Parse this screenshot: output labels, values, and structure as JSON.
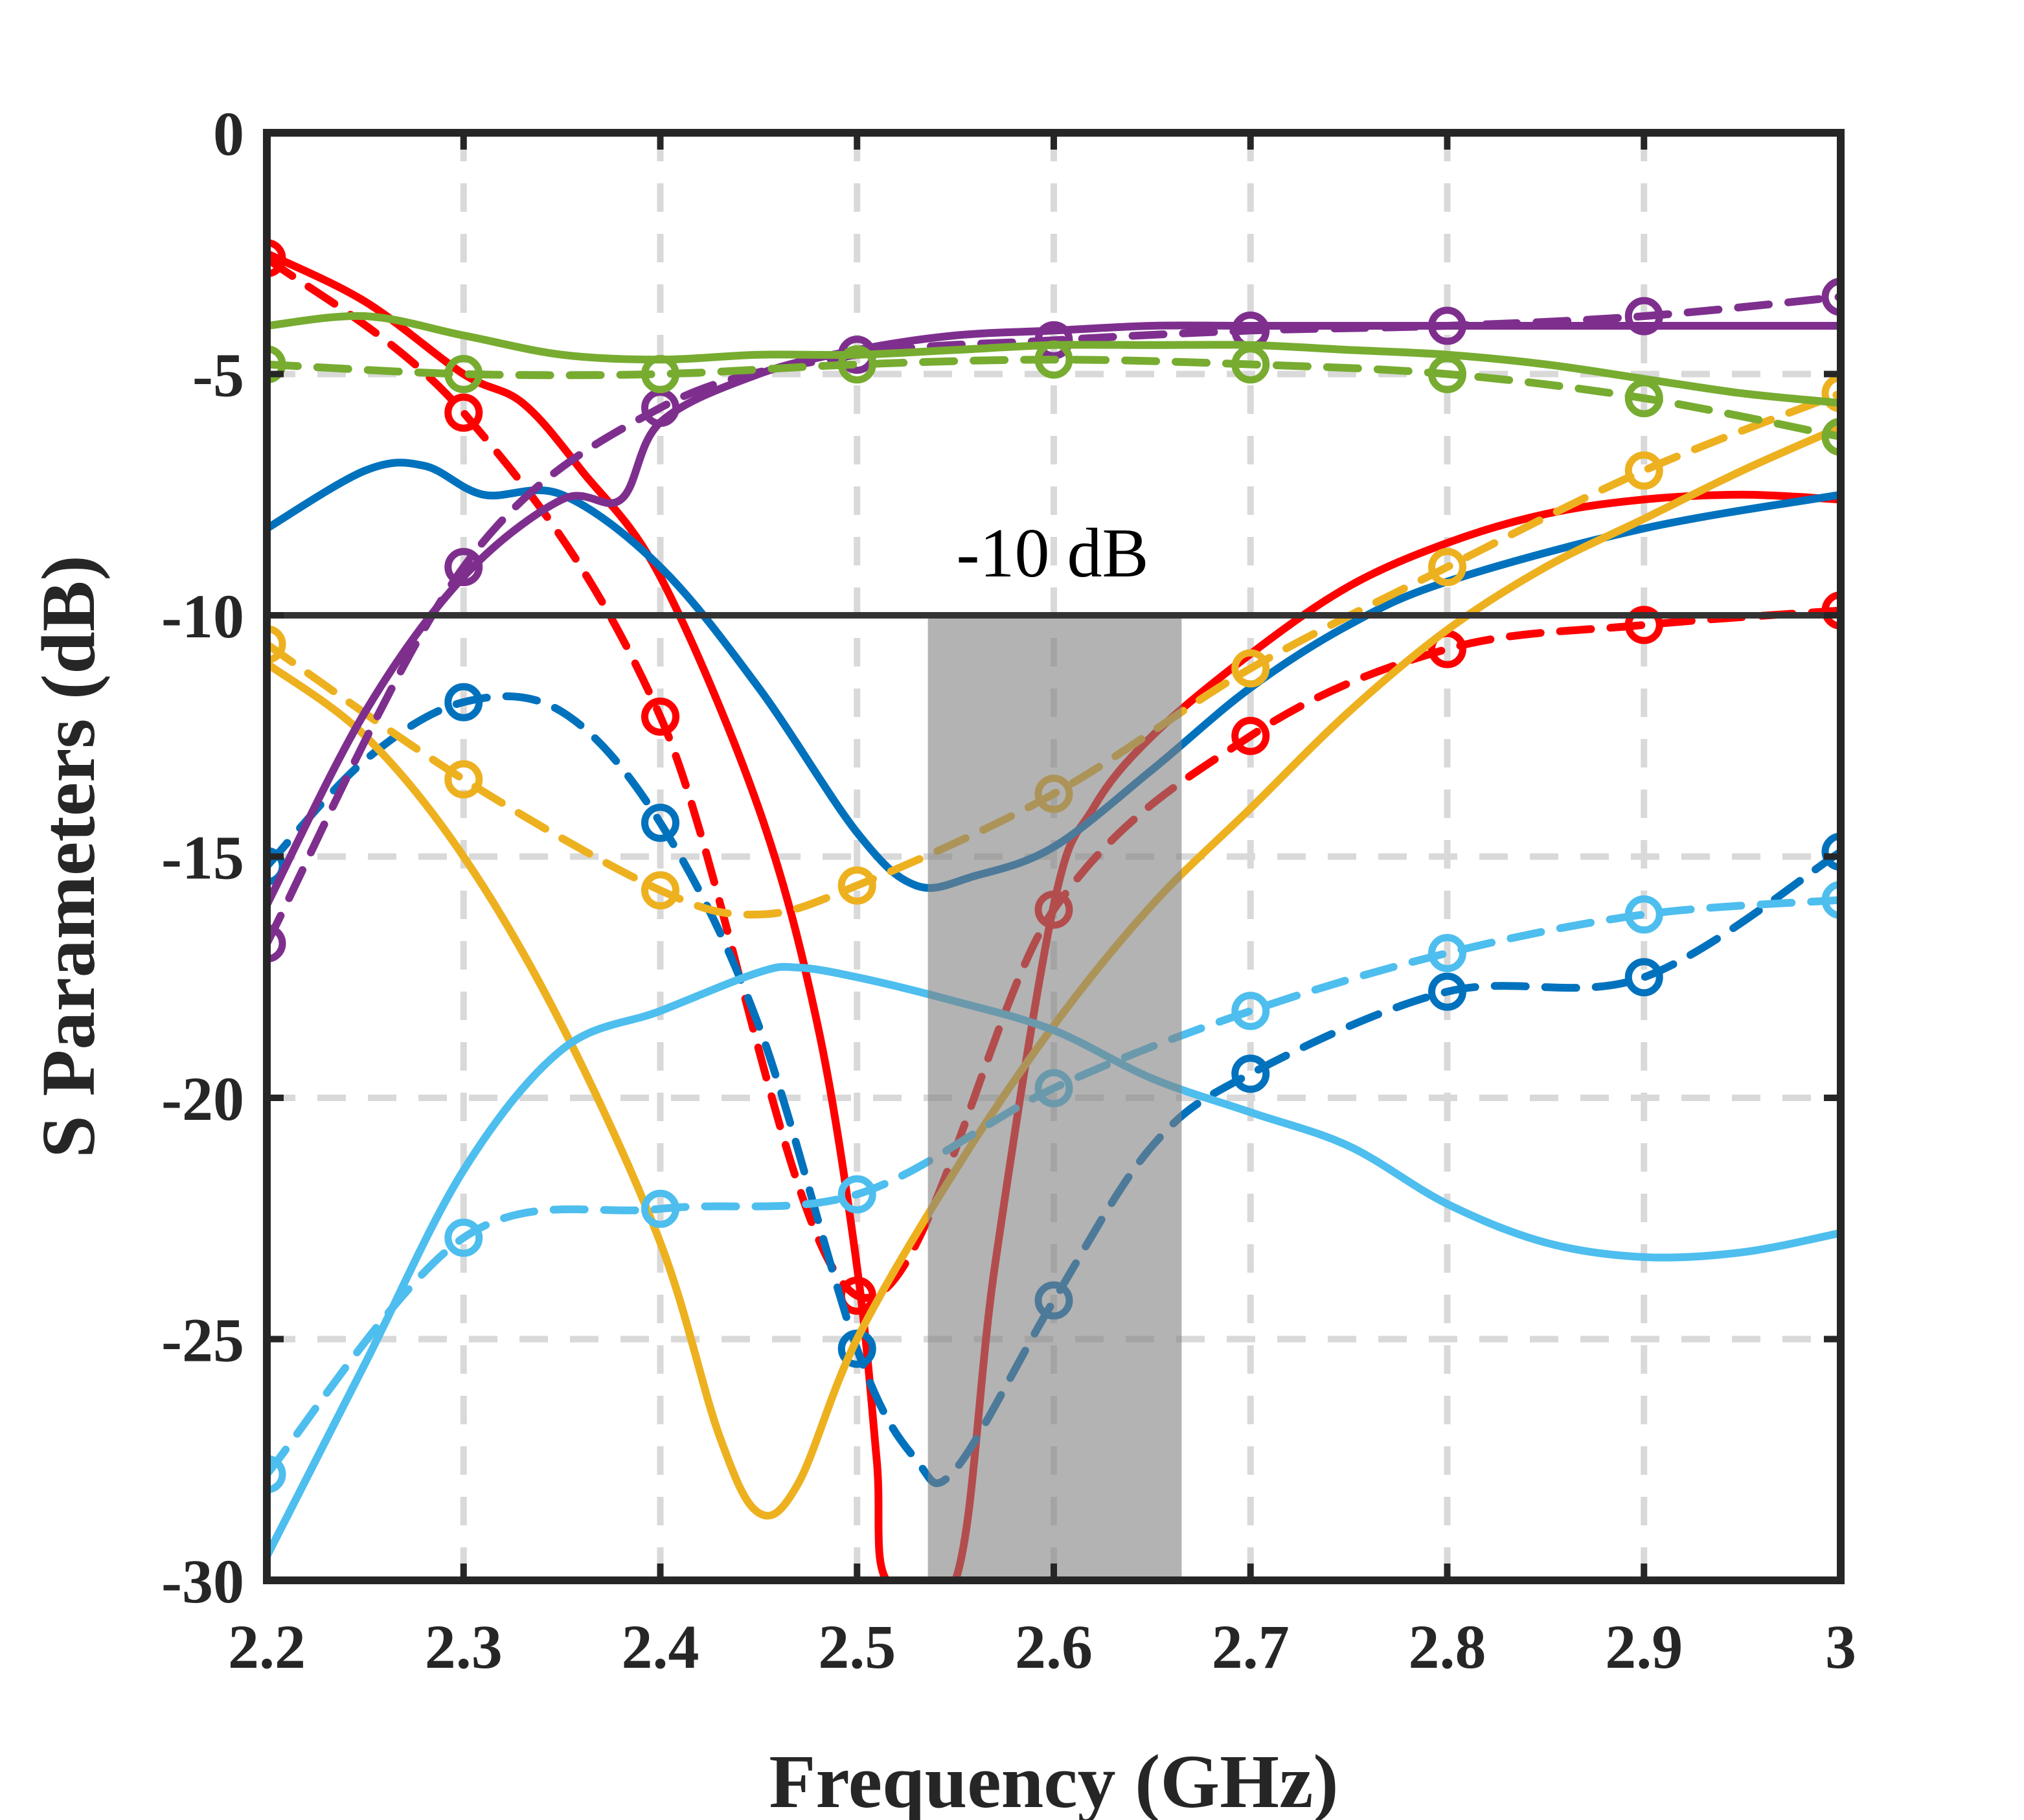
{
  "chart_data": {
    "type": "line",
    "title": "",
    "xlabel": "Frequency (GHz)",
    "ylabel": "S Parameters (dB)",
    "xlim": [
      2.2,
      3.0
    ],
    "ylim": [
      -30,
      0
    ],
    "grid": true,
    "x_ticks": [
      2.2,
      2.3,
      2.4,
      2.5,
      2.6,
      2.7,
      2.8,
      2.9,
      3.0
    ],
    "x_tick_labels": [
      "2.2",
      "2.3",
      "2.4",
      "2.5",
      "2.6",
      "2.7",
      "2.8",
      "2.9",
      "3"
    ],
    "y_ticks": [
      0,
      -5,
      -10,
      -15,
      -20,
      -25,
      -30
    ],
    "y_tick_labels": [
      "0",
      "-5",
      "-10",
      "-15",
      "-20",
      "-25",
      "-30"
    ],
    "reference_line": {
      "y": -10,
      "label": "-10 dB",
      "color": "#333333"
    },
    "shaded_band": {
      "x_start": 2.536,
      "x_end": 2.665,
      "color": "#808080"
    },
    "series": [
      {
        "name": "red-solid",
        "color": "#ff0000",
        "style": "solid",
        "x": [
          2.2,
          2.25,
          2.3,
          2.33,
          2.36,
          2.4,
          2.45,
          2.48,
          2.5,
          2.51,
          2.515,
          2.55,
          2.57,
          2.6,
          2.62,
          2.65,
          2.7,
          2.75,
          2.8,
          2.85,
          2.9,
          2.95,
          3.0
        ],
        "y": [
          -2.5,
          -3.5,
          -5.0,
          -5.6,
          -7.0,
          -9.2,
          -14.0,
          -18.5,
          -23.5,
          -27.5,
          -30.0,
          -30.0,
          -23.5,
          -16.0,
          -14.0,
          -12.5,
          -10.8,
          -9.4,
          -8.5,
          -7.9,
          -7.6,
          -7.5,
          -7.6
        ]
      },
      {
        "name": "red-dashed",
        "color": "#ff0000",
        "style": "dashed",
        "markers_every": 1,
        "x": [
          2.2,
          2.3,
          2.4,
          2.5,
          2.6,
          2.7,
          2.8,
          2.9,
          3.0
        ],
        "y": [
          -2.6,
          -5.8,
          -12.1,
          -24.1,
          -16.1,
          -12.5,
          -10.7,
          -10.2,
          -9.9
        ]
      },
      {
        "name": "blue-solid",
        "color": "#0072bd",
        "style": "solid",
        "x": [
          2.2,
          2.25,
          2.28,
          2.31,
          2.35,
          2.4,
          2.45,
          2.5,
          2.53,
          2.56,
          2.6,
          2.65,
          2.7,
          2.75,
          2.8,
          2.9,
          3.0
        ],
        "y": [
          -8.2,
          -7.0,
          -6.9,
          -7.5,
          -7.5,
          -9.0,
          -11.5,
          -14.5,
          -15.6,
          -15.4,
          -14.8,
          -13.2,
          -11.5,
          -10.2,
          -9.3,
          -8.2,
          -7.5
        ]
      },
      {
        "name": "blue-dashed",
        "color": "#0072bd",
        "style": "dashed",
        "markers_every": 1,
        "x": [
          2.2,
          2.25,
          2.3,
          2.35,
          2.4,
          2.45,
          2.5,
          2.53,
          2.55,
          2.6,
          2.65,
          2.7,
          2.8,
          2.9,
          3.0
        ],
        "y": [
          -15.2,
          -13.0,
          -11.8,
          -12.0,
          -14.3,
          -18.5,
          -25.2,
          -27.5,
          -27.7,
          -24.2,
          -21.0,
          -19.5,
          -17.8,
          -17.5,
          -14.9
        ]
      },
      {
        "name": "yellow-solid",
        "color": "#edb120",
        "style": "solid",
        "x": [
          2.2,
          2.25,
          2.3,
          2.35,
          2.4,
          2.43,
          2.45,
          2.47,
          2.5,
          2.55,
          2.6,
          2.65,
          2.7,
          2.75,
          2.8,
          2.85,
          2.9,
          2.95,
          3.0
        ],
        "y": [
          -11.0,
          -12.5,
          -15.0,
          -18.5,
          -23.0,
          -27.0,
          -28.6,
          -28.0,
          -25.0,
          -21.5,
          -18.5,
          -16.0,
          -14.0,
          -12.0,
          -10.3,
          -9.0,
          -8.0,
          -7.0,
          -6.1
        ]
      },
      {
        "name": "yellow-dashed",
        "color": "#edb120",
        "style": "dashed",
        "markers_every": 1,
        "x": [
          2.2,
          2.3,
          2.4,
          2.45,
          2.5,
          2.6,
          2.7,
          2.8,
          2.9,
          3.0
        ],
        "y": [
          -10.6,
          -13.4,
          -15.7,
          -16.2,
          -15.6,
          -13.7,
          -11.1,
          -9.0,
          -7.0,
          -5.4
        ]
      },
      {
        "name": "purple-solid",
        "color": "#7e2f8e",
        "style": "solid",
        "x": [
          2.2,
          2.25,
          2.3,
          2.35,
          2.38,
          2.4,
          2.45,
          2.5,
          2.55,
          2.6,
          2.65,
          2.7,
          2.8,
          2.9,
          3.0
        ],
        "y": [
          -16.0,
          -12.0,
          -9.2,
          -7.6,
          -7.6,
          -6.0,
          -5.0,
          -4.5,
          -4.2,
          -4.1,
          -4.0,
          -4.0,
          -4.0,
          -4.0,
          -4.0
        ]
      },
      {
        "name": "purple-dashed",
        "color": "#7e2f8e",
        "style": "dashed",
        "markers_every": 1,
        "x": [
          2.2,
          2.3,
          2.4,
          2.5,
          2.6,
          2.7,
          2.8,
          2.9,
          3.0
        ],
        "y": [
          -16.8,
          -9.0,
          -5.7,
          -4.6,
          -4.3,
          -4.1,
          -4.0,
          -3.8,
          -3.4
        ]
      },
      {
        "name": "green-solid",
        "color": "#77ac30",
        "style": "solid",
        "x": [
          2.2,
          2.25,
          2.3,
          2.35,
          2.4,
          2.45,
          2.5,
          2.55,
          2.6,
          2.65,
          2.7,
          2.75,
          2.8,
          2.85,
          2.9,
          2.95,
          3.0
        ],
        "y": [
          -4.0,
          -3.8,
          -4.2,
          -4.6,
          -4.7,
          -4.6,
          -4.6,
          -4.5,
          -4.4,
          -4.4,
          -4.4,
          -4.5,
          -4.6,
          -4.8,
          -5.1,
          -5.4,
          -5.6
        ]
      },
      {
        "name": "green-dashed",
        "color": "#77ac30",
        "style": "dashed",
        "markers_every": 1,
        "x": [
          2.2,
          2.3,
          2.4,
          2.5,
          2.6,
          2.7,
          2.8,
          2.9,
          3.0
        ],
        "y": [
          -4.8,
          -5.0,
          -5.0,
          -4.8,
          -4.7,
          -4.8,
          -5.0,
          -5.5,
          -6.3
        ]
      },
      {
        "name": "lightblue-solid",
        "color": "#4dbeee",
        "style": "solid",
        "x": [
          2.2,
          2.25,
          2.3,
          2.35,
          2.4,
          2.45,
          2.47,
          2.5,
          2.55,
          2.6,
          2.65,
          2.7,
          2.75,
          2.8,
          2.85,
          2.9,
          2.95,
          3.0
        ],
        "y": [
          -29.5,
          -25.5,
          -21.5,
          -19.0,
          -18.2,
          -17.4,
          -17.3,
          -17.5,
          -18.0,
          -18.6,
          -19.6,
          -20.3,
          -21.0,
          -22.2,
          -23.0,
          -23.3,
          -23.2,
          -22.8
        ]
      },
      {
        "name": "lightblue-dashed",
        "color": "#4dbeee",
        "style": "dashed",
        "markers_every": 1,
        "x": [
          2.2,
          2.3,
          2.4,
          2.5,
          2.6,
          2.7,
          2.8,
          2.9,
          3.0
        ],
        "y": [
          -27.8,
          -22.9,
          -22.3,
          -22.0,
          -19.8,
          -18.2,
          -17.0,
          -16.2,
          -15.9
        ]
      }
    ]
  }
}
